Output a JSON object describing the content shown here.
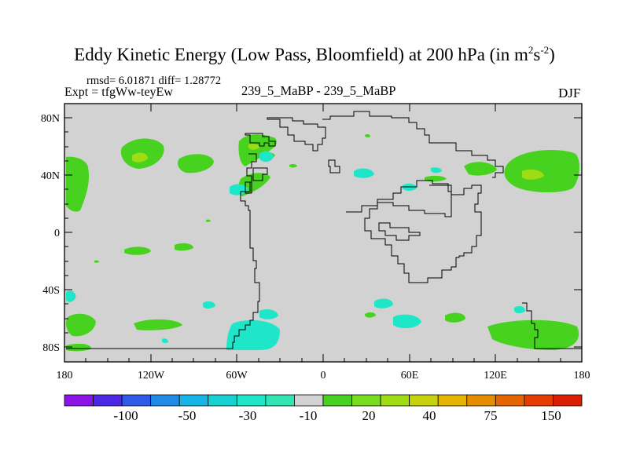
{
  "title": {
    "main": "Eddy Kinetic Energy (Low Pass, Bloomfield) at 200 hPa (in m",
    "exp1": "2",
    "unit_s": "s",
    "exp2": "-2",
    "close": ")"
  },
  "stats": {
    "text": "rmsd= 6.01871 diff= 1.28772"
  },
  "expt": {
    "text": "Expt = tfgWw-teyEw"
  },
  "center_label": {
    "text": "239_5_MaBP - 239_5_MaBP"
  },
  "season": {
    "text": "DJF"
  },
  "axes": {
    "y_ticks": [
      "80N",
      "40N",
      "0",
      "40S",
      "80S"
    ],
    "x_ticks": [
      "180",
      "120W",
      "60W",
      "0",
      "60E",
      "120E",
      "180"
    ]
  },
  "colorbar": {
    "labels": [
      "-100",
      "-50",
      "-30",
      "-10",
      "20",
      "40",
      "75",
      "150"
    ],
    "colors": [
      "#8c14e6",
      "#4b28e6",
      "#2d5ae6",
      "#1e8ce6",
      "#14b4e6",
      "#14d2d2",
      "#1ee6c8",
      "#32e6b4",
      "#d2d2d2",
      "#46d21e",
      "#78dc1e",
      "#a0dc14",
      "#c8d20a",
      "#e6b400",
      "#e68c00",
      "#e66400",
      "#e63c00",
      "#dc1e00"
    ]
  },
  "colors": {
    "background": "#d2d2d2",
    "positive_low": "#46d21e",
    "positive_mid": "#a0dc14",
    "negative_low": "#1ee6c8"
  }
}
